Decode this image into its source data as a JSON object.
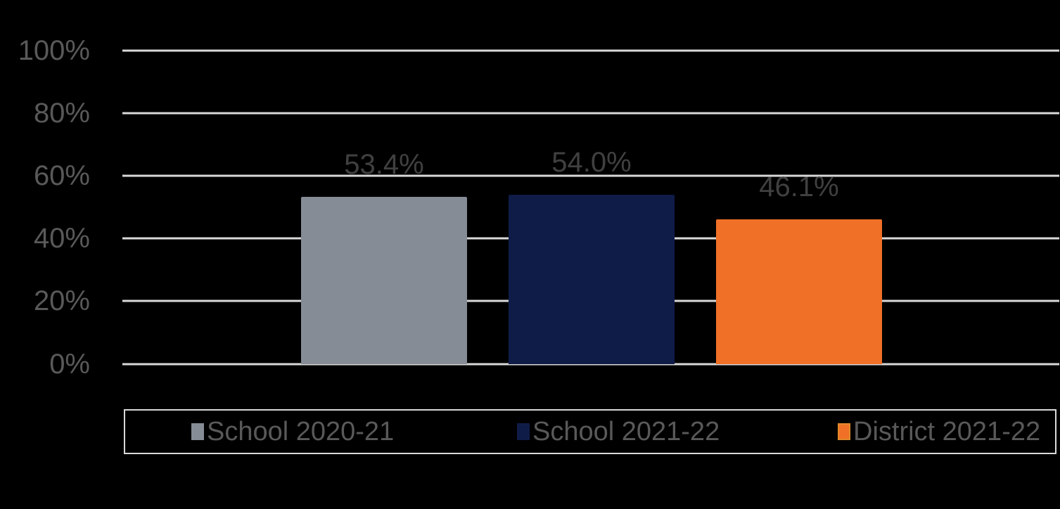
{
  "chart_data": {
    "type": "bar",
    "title": "",
    "xlabel": "",
    "ylabel": "",
    "ylim": [
      0,
      100
    ],
    "grid": true,
    "legend_position": "bottom",
    "yticks": [
      "0%",
      "20%",
      "40%",
      "60%",
      "80%",
      "100%"
    ],
    "categories": [
      "School 2020-21",
      "School 2021-22",
      "District 2021-22"
    ],
    "values": [
      53.4,
      54.0,
      46.1
    ],
    "data_labels": [
      "53.4%",
      "54.0%",
      "46.1%"
    ],
    "colors": [
      "#858c96",
      "#101c48",
      "#f07027"
    ]
  },
  "legend": {
    "items": [
      {
        "label": "School 2020-21",
        "color": "#858c96"
      },
      {
        "label": "School 2021-22",
        "color": "#101c48"
      },
      {
        "label": "District 2021-22",
        "color": "#f07027"
      }
    ]
  }
}
